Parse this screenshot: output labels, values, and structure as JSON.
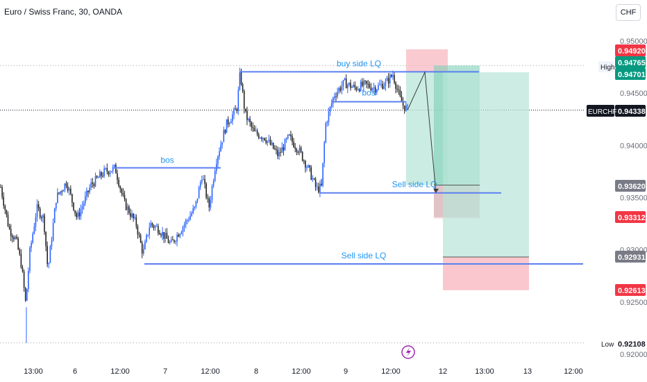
{
  "header": {
    "title": "Euro / Swiss Franc, 30, OANDA",
    "currency_label": "CHF"
  },
  "colors": {
    "up": "#2962ff",
    "down": "#222222",
    "level_line": "#5b7ff0",
    "level_text": "#2196f3",
    "target_fill": "#b8e6d8",
    "stop_fill": "#f7b9c1",
    "gray_fill": "#b0b0b0",
    "red_label": "#f23645",
    "green_label": "#089981",
    "gray_label": "#787b86",
    "dark_label": "#131722",
    "lightning": "#9c27b0"
  },
  "chart_data": {
    "type": "candlestick",
    "symbol": "EURCHF",
    "timeframe": "30",
    "ylim": [
      0.9195,
      0.9515
    ],
    "y_ticks": [
      "0.95000",
      "0.94500",
      "0.94000",
      "0.93500",
      "0.93000",
      "0.92500",
      "0.92000"
    ],
    "x_ticks": [
      "13:00",
      "6",
      "12:00",
      "7",
      "12:00",
      "8",
      "12:00",
      "9",
      "12:00",
      "12",
      "13:00",
      "13",
      "12:00"
    ],
    "price_labels": [
      {
        "value": "0.94920",
        "style": "red"
      },
      {
        "value": "0.94765",
        "style": "green"
      },
      {
        "value": "0.94701",
        "style": "green"
      },
      {
        "value": "0.94338",
        "style": "dark",
        "prefix": "EURCHF"
      },
      {
        "value": "0.93620",
        "style": "gray"
      },
      {
        "value": "0.93312",
        "style": "red"
      },
      {
        "value": "0.92931",
        "style": "gray"
      },
      {
        "value": "0.92613",
        "style": "red"
      },
      {
        "value": "0.92108",
        "style": "none",
        "prefix": "Low"
      }
    ],
    "high_label": "High",
    "low_label": "Low",
    "last_price": 0.94338,
    "high": 0.94765,
    "low": 0.92108,
    "annotations": {
      "bos_1": "bos",
      "bos_2": "bos",
      "buy_side": "buy side LQ",
      "sell_side_1": "Sell side LQ",
      "sell_side_2": "Sell side LQ"
    },
    "levels": {
      "bos_1": 0.93785,
      "buy_side": 0.94705,
      "bos_2": 0.94418,
      "sell_side_1": 0.93545,
      "sell_side_2": 0.92865
    },
    "zones": {
      "short_1": {
        "entry": 0.94701,
        "stop": 0.9492,
        "target": 0.9362
      },
      "short_1_gray": {
        "top": 0.9362,
        "bottom": 0.93312
      },
      "long_zone": {
        "top": 0.94701,
        "bottom": 0.92931
      },
      "long_stop": {
        "top": 0.92931,
        "bottom": 0.92613
      }
    },
    "path_points": [
      0.94338,
      0.94701,
      0.93545
    ],
    "candle_anchors": [
      [
        0,
        0.936
      ],
      [
        12,
        0.932
      ],
      [
        22,
        0.931
      ],
      [
        30,
        0.9285
      ],
      [
        36,
        0.9248
      ],
      [
        42,
        0.9298
      ],
      [
        52,
        0.934
      ],
      [
        62,
        0.933
      ],
      [
        68,
        0.928
      ],
      [
        80,
        0.935
      ],
      [
        95,
        0.9365
      ],
      [
        110,
        0.933
      ],
      [
        130,
        0.9362
      ],
      [
        150,
        0.9375
      ],
      [
        165,
        0.9378
      ],
      [
        178,
        0.9345
      ],
      [
        195,
        0.9325
      ],
      [
        205,
        0.9296
      ],
      [
        215,
        0.9325
      ],
      [
        228,
        0.932
      ],
      [
        245,
        0.9305
      ],
      [
        262,
        0.9322
      ],
      [
        280,
        0.934
      ],
      [
        290,
        0.9372
      ],
      [
        300,
        0.934
      ],
      [
        310,
        0.9385
      ],
      [
        325,
        0.942
      ],
      [
        340,
        0.9435
      ],
      [
        345,
        0.947
      ],
      [
        352,
        0.943
      ],
      [
        365,
        0.9412
      ],
      [
        380,
        0.9408
      ],
      [
        395,
        0.9395
      ],
      [
        400,
        0.939
      ],
      [
        415,
        0.9408
      ],
      [
        430,
        0.9395
      ],
      [
        445,
        0.9375
      ],
      [
        455,
        0.9358
      ],
      [
        462,
        0.936
      ],
      [
        468,
        0.942
      ],
      [
        480,
        0.9448
      ],
      [
        495,
        0.946
      ],
      [
        510,
        0.9455
      ],
      [
        525,
        0.9458
      ],
      [
        540,
        0.9455
      ],
      [
        555,
        0.946
      ],
      [
        565,
        0.9468
      ],
      [
        575,
        0.9445
      ],
      [
        580,
        0.9438
      ],
      [
        587,
        0.94338
      ]
    ]
  }
}
